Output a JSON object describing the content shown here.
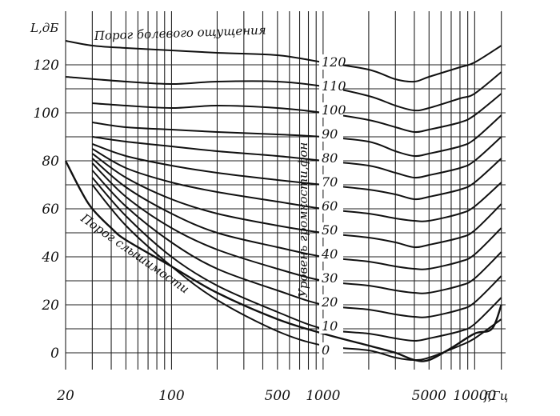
{
  "chart_data": {
    "type": "line",
    "x_scale": "log",
    "grid": true,
    "xlim": [
      20,
      16000
    ],
    "ylim": [
      -5,
      130
    ],
    "ylabel": "L,дБ",
    "xlabel": "f,Гц",
    "y_ticks": [
      0,
      20,
      40,
      60,
      80,
      100,
      120
    ],
    "y_tick_labels": [
      "0",
      "20",
      "40",
      "60",
      "80",
      "100",
      "120"
    ],
    "x_ticks": [
      20,
      100,
      500,
      1000,
      5000,
      10000
    ],
    "x_tick_labels": [
      "20",
      "100",
      "500",
      "1000",
      "5000",
      "10000"
    ],
    "x_grid": [
      20,
      30,
      40,
      50,
      60,
      70,
      80,
      90,
      100,
      200,
      300,
      400,
      500,
      600,
      700,
      800,
      900,
      1000,
      2000,
      3000,
      4000,
      5000,
      6000,
      7000,
      8000,
      9000,
      10000,
      15000
    ],
    "y_grid": [
      0,
      10,
      20,
      30,
      40,
      50,
      60,
      70,
      80,
      90,
      100,
      110,
      120
    ],
    "annotations": {
      "pain_threshold": "Порог болевого ощущения",
      "hearing_threshold": "Порог слышимости",
      "loudness_level": "Уровень громкости,фон"
    },
    "curve_labels": [
      "120",
      "110",
      "100",
      "90",
      "80",
      "70",
      "60",
      "50",
      "40",
      "30",
      "20",
      "10",
      "0"
    ],
    "series": [
      {
        "name": "120",
        "points": [
          [
            20,
            130
          ],
          [
            30,
            128
          ],
          [
            50,
            127
          ],
          [
            100,
            126
          ],
          [
            200,
            125
          ],
          [
            500,
            124
          ],
          [
            1000,
            121
          ],
          [
            2000,
            118
          ],
          [
            3000,
            114
          ],
          [
            4000,
            113
          ],
          [
            5000,
            115
          ],
          [
            8000,
            119
          ],
          [
            10000,
            121
          ],
          [
            15000,
            128
          ]
        ]
      },
      {
        "name": "110",
        "points": [
          [
            20,
            115
          ],
          [
            50,
            113
          ],
          [
            100,
            112
          ],
          [
            200,
            113
          ],
          [
            500,
            113
          ],
          [
            1000,
            111
          ],
          [
            2000,
            107
          ],
          [
            3000,
            103
          ],
          [
            4000,
            101
          ],
          [
            5000,
            102
          ],
          [
            8000,
            106
          ],
          [
            10000,
            108
          ],
          [
            15000,
            117
          ]
        ]
      },
      {
        "name": "100",
        "points": [
          [
            30,
            104
          ],
          [
            50,
            103
          ],
          [
            100,
            102
          ],
          [
            200,
            103
          ],
          [
            500,
            102
          ],
          [
            1000,
            100
          ],
          [
            2000,
            97
          ],
          [
            3000,
            94
          ],
          [
            4000,
            92
          ],
          [
            5000,
            93
          ],
          [
            8000,
            96
          ],
          [
            10000,
            99
          ],
          [
            15000,
            108
          ]
        ]
      },
      {
        "name": "90",
        "points": [
          [
            30,
            96
          ],
          [
            50,
            94
          ],
          [
            100,
            93
          ],
          [
            200,
            92
          ],
          [
            500,
            91
          ],
          [
            1000,
            90
          ],
          [
            2000,
            88
          ],
          [
            3000,
            84
          ],
          [
            4000,
            82
          ],
          [
            5000,
            83
          ],
          [
            8000,
            86
          ],
          [
            10000,
            89
          ],
          [
            15000,
            99
          ]
        ]
      },
      {
        "name": "80",
        "points": [
          [
            30,
            90
          ],
          [
            50,
            88
          ],
          [
            100,
            86
          ],
          [
            200,
            84
          ],
          [
            500,
            82
          ],
          [
            1000,
            80
          ],
          [
            2000,
            78
          ],
          [
            3000,
            75
          ],
          [
            4000,
            73
          ],
          [
            5000,
            74
          ],
          [
            8000,
            77
          ],
          [
            10000,
            80
          ],
          [
            15000,
            90
          ]
        ]
      },
      {
        "name": "70",
        "points": [
          [
            30,
            87
          ],
          [
            50,
            82
          ],
          [
            100,
            78
          ],
          [
            200,
            75
          ],
          [
            500,
            72
          ],
          [
            1000,
            70
          ],
          [
            2000,
            68
          ],
          [
            3000,
            66
          ],
          [
            4000,
            64
          ],
          [
            5000,
            65
          ],
          [
            8000,
            68
          ],
          [
            10000,
            71
          ],
          [
            15000,
            81
          ]
        ]
      },
      {
        "name": "60",
        "points": [
          [
            30,
            85
          ],
          [
            50,
            77
          ],
          [
            100,
            71
          ],
          [
            200,
            67
          ],
          [
            500,
            63
          ],
          [
            1000,
            60
          ],
          [
            2000,
            58
          ],
          [
            3000,
            56
          ],
          [
            4000,
            55
          ],
          [
            5000,
            55
          ],
          [
            8000,
            58
          ],
          [
            10000,
            61
          ],
          [
            15000,
            71
          ]
        ]
      },
      {
        "name": "50",
        "points": [
          [
            30,
            83
          ],
          [
            50,
            73
          ],
          [
            100,
            64
          ],
          [
            200,
            58
          ],
          [
            500,
            53
          ],
          [
            1000,
            50
          ],
          [
            2000,
            48
          ],
          [
            3000,
            46
          ],
          [
            4000,
            44
          ],
          [
            5000,
            45
          ],
          [
            8000,
            48
          ],
          [
            10000,
            51
          ],
          [
            15000,
            62
          ]
        ]
      },
      {
        "name": "40",
        "points": [
          [
            30,
            81
          ],
          [
            50,
            69
          ],
          [
            100,
            58
          ],
          [
            200,
            50
          ],
          [
            500,
            44
          ],
          [
            1000,
            40
          ],
          [
            2000,
            38
          ],
          [
            3000,
            36
          ],
          [
            4000,
            35
          ],
          [
            5000,
            35
          ],
          [
            8000,
            38
          ],
          [
            10000,
            41
          ],
          [
            15000,
            52
          ]
        ]
      },
      {
        "name": "30",
        "points": [
          [
            30,
            79
          ],
          [
            50,
            65
          ],
          [
            100,
            52
          ],
          [
            200,
            43
          ],
          [
            500,
            35
          ],
          [
            1000,
            30
          ],
          [
            2000,
            28
          ],
          [
            3000,
            26
          ],
          [
            4000,
            25
          ],
          [
            5000,
            25
          ],
          [
            8000,
            28
          ],
          [
            10000,
            31
          ],
          [
            15000,
            42
          ]
        ]
      },
      {
        "name": "20",
        "points": [
          [
            30,
            76
          ],
          [
            50,
            61
          ],
          [
            100,
            46
          ],
          [
            200,
            35
          ],
          [
            500,
            26
          ],
          [
            1000,
            20
          ],
          [
            2000,
            18
          ],
          [
            3000,
            16
          ],
          [
            4000,
            15
          ],
          [
            5000,
            15
          ],
          [
            8000,
            18
          ],
          [
            10000,
            21
          ],
          [
            15000,
            32
          ]
        ]
      },
      {
        "name": "10",
        "points": [
          [
            30,
            73
          ],
          [
            50,
            57
          ],
          [
            100,
            40
          ],
          [
            200,
            28
          ],
          [
            500,
            17
          ],
          [
            1000,
            10
          ],
          [
            2000,
            8
          ],
          [
            3000,
            6
          ],
          [
            4000,
            5
          ],
          [
            5000,
            6
          ],
          [
            8000,
            9
          ],
          [
            10000,
            12
          ],
          [
            15000,
            23
          ]
        ]
      },
      {
        "name": "0",
        "points": [
          [
            30,
            70
          ],
          [
            50,
            53
          ],
          [
            100,
            36
          ],
          [
            200,
            22
          ],
          [
            500,
            9
          ],
          [
            1000,
            3
          ],
          [
            2000,
            1
          ],
          [
            3000,
            -2
          ],
          [
            4000,
            -3
          ],
          [
            5000,
            -2
          ],
          [
            8000,
            3
          ],
          [
            10000,
            6
          ],
          [
            15000,
            14
          ]
        ]
      },
      {
        "name": "Порог слышимости",
        "points": [
          [
            20,
            80
          ],
          [
            25,
            68
          ],
          [
            30,
            60
          ],
          [
            40,
            52
          ],
          [
            50,
            47
          ],
          [
            100,
            36
          ],
          [
            200,
            25
          ],
          [
            500,
            14
          ],
          [
            1000,
            8
          ],
          [
            2000,
            3
          ],
          [
            3000,
            0
          ],
          [
            4000,
            -3
          ],
          [
            5000,
            -3
          ],
          [
            7000,
            2
          ],
          [
            10000,
            8
          ],
          [
            13000,
            10
          ],
          [
            15000,
            20
          ]
        ]
      }
    ]
  }
}
